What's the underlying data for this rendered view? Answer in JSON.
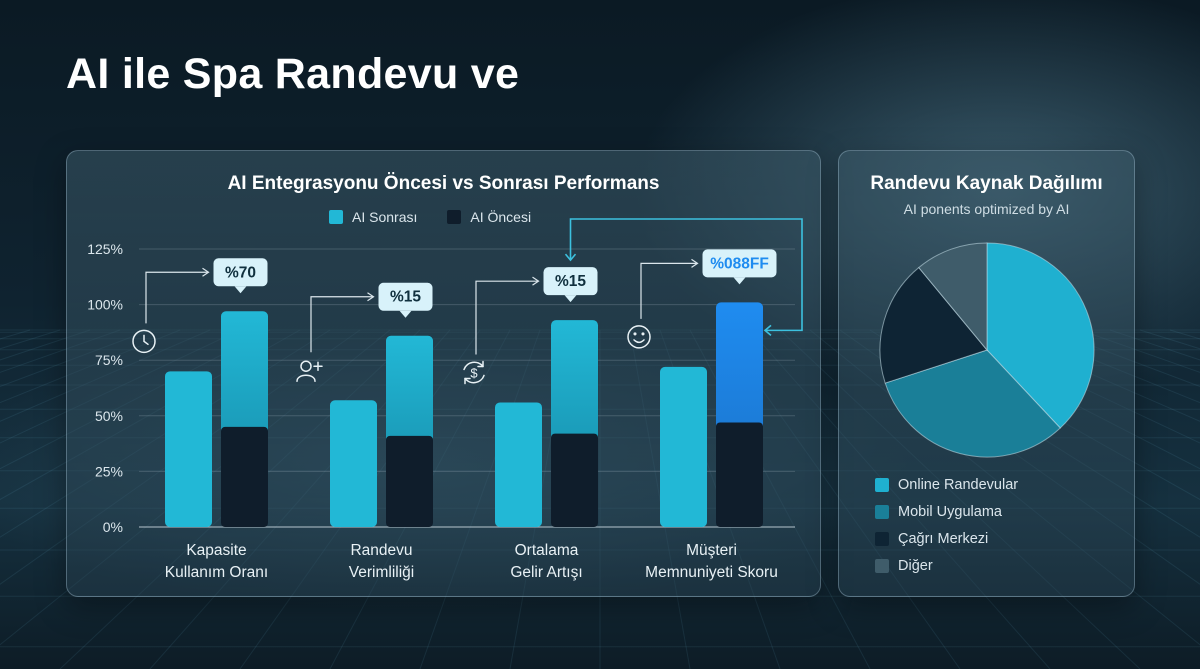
{
  "page": {
    "title": "AI ile Spa Randevu ve"
  },
  "colors": {
    "after": "#22b8d6",
    "before": "#0f1d2b",
    "highlight": "#1f8cf0",
    "callout_bg": "#d8f2fa",
    "callout_text": "#10303e",
    "arrow": "#3cc1df"
  },
  "chart_data": [
    {
      "type": "bar",
      "title": "AI Entegrasyonu Öncesi vs Sonrası Performans",
      "legend": [
        "AI Sonrası",
        "AI Öncesi"
      ],
      "legend_placement": "top",
      "categories": [
        [
          "Kapasite",
          "Kullanım Oranı"
        ],
        [
          "Randevu",
          "Verimliliği"
        ],
        [
          "Ortalama",
          "Gelir Artışı"
        ],
        [
          "Müşteri",
          "Memnuniyeti Skoru"
        ]
      ],
      "ylim": [
        0,
        125
      ],
      "yticks": [
        0,
        25,
        50,
        75,
        100,
        125
      ],
      "ytick_labels": [
        "0%",
        "25%",
        "50%",
        "75%",
        "100%",
        "125%"
      ],
      "grid": true,
      "series": [
        {
          "name": "AI Sonrası",
          "values": [
            70,
            57,
            56,
            72
          ]
        },
        {
          "name": "AI Öncesi",
          "values": [
            97,
            86,
            93,
            101
          ],
          "lower_portion": [
            45,
            41,
            42,
            47
          ]
        }
      ],
      "callouts": [
        "%70",
        "%15",
        "%15",
        "%088FF"
      ],
      "icons": [
        "clock-icon",
        "user-add-icon",
        "dollar-cycle-icon",
        "smile-icon"
      ]
    },
    {
      "type": "pie",
      "title": "Randevu Kaynak Dağılımı",
      "subtitle": "AI ponents optimized by AI",
      "labels": [
        "Online Randevular",
        "Mobil Uygulama",
        "Çağrı Merkezi",
        "Diğer"
      ],
      "values": [
        38,
        32,
        19,
        11
      ],
      "colors": [
        "#1fb0d0",
        "#1a7f98",
        "#0e2434",
        "#3f5c6a"
      ]
    }
  ]
}
